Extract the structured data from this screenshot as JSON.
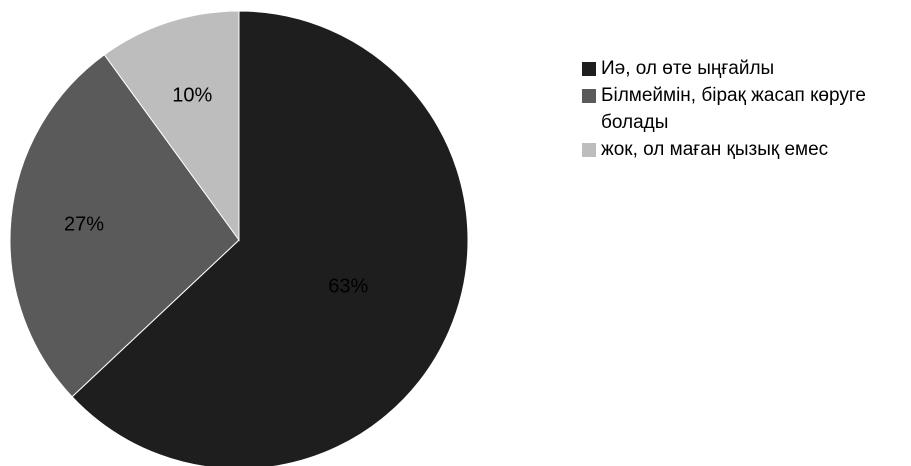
{
  "chart_data": {
    "type": "pie",
    "title": "",
    "categories": [
      "Иә, ол өте ыңғайлы",
      "Білмеймін, бірақ жасап көруге болады",
      "жок, ол маған қызық емес"
    ],
    "values": [
      63,
      27,
      10
    ],
    "value_labels": [
      "63%",
      "27%",
      "10%"
    ],
    "colors": [
      "#1e1e1e",
      "#5a5a5a",
      "#bdbdbd"
    ],
    "start_angle_deg": 0,
    "direction": "clockwise",
    "legend_position": "right"
  }
}
